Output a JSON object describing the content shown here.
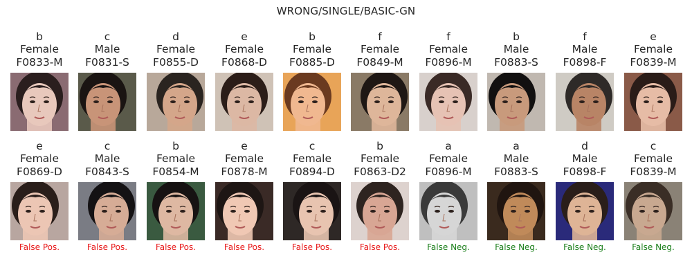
{
  "title": "WRONG/SINGLE/BASIC-GN",
  "colors": {
    "false_pos": "#e8191a",
    "false_neg": "#1b7f1b",
    "text": "#262626"
  },
  "rows": [
    {
      "cells": [
        {
          "label": "b",
          "gender": "Female",
          "id": "F0833-M"
        },
        {
          "label": "c",
          "gender": "Male",
          "id": "F0831-S"
        },
        {
          "label": "d",
          "gender": "Female",
          "id": "F0855-D"
        },
        {
          "label": "e",
          "gender": "Female",
          "id": "F0868-D"
        },
        {
          "label": "b",
          "gender": "Female",
          "id": "F0885-D"
        },
        {
          "label": "f",
          "gender": "Female",
          "id": "F0849-M"
        },
        {
          "label": "f",
          "gender": "Female",
          "id": "F0896-M"
        },
        {
          "label": "b",
          "gender": "Male",
          "id": "F0883-S"
        },
        {
          "label": "f",
          "gender": "Male",
          "id": "F0898-F"
        },
        {
          "label": "e",
          "gender": "Female",
          "id": "F0839-M"
        }
      ]
    },
    {
      "cells": [
        {
          "label": "e",
          "gender": "Female",
          "id": "F0869-D",
          "error": "False Pos."
        },
        {
          "label": "c",
          "gender": "Male",
          "id": "F0843-S",
          "error": "False Pos."
        },
        {
          "label": "b",
          "gender": "Female",
          "id": "F0854-M",
          "error": "False Pos."
        },
        {
          "label": "e",
          "gender": "Female",
          "id": "F0878-M",
          "error": "False Pos."
        },
        {
          "label": "c",
          "gender": "Female",
          "id": "F0894-D",
          "error": "False Pos."
        },
        {
          "label": "b",
          "gender": "Female",
          "id": "F0863-D2",
          "error": "False Pos."
        },
        {
          "label": "a",
          "gender": "Female",
          "id": "F0896-M",
          "error": "False Neg."
        },
        {
          "label": "a",
          "gender": "Male",
          "id": "F0883-S",
          "error": "False Neg."
        },
        {
          "label": "d",
          "gender": "Male",
          "id": "F0898-F",
          "error": "False Neg."
        },
        {
          "label": "c",
          "gender": "Female",
          "id": "F0839-M",
          "error": "False Neg."
        }
      ]
    }
  ]
}
